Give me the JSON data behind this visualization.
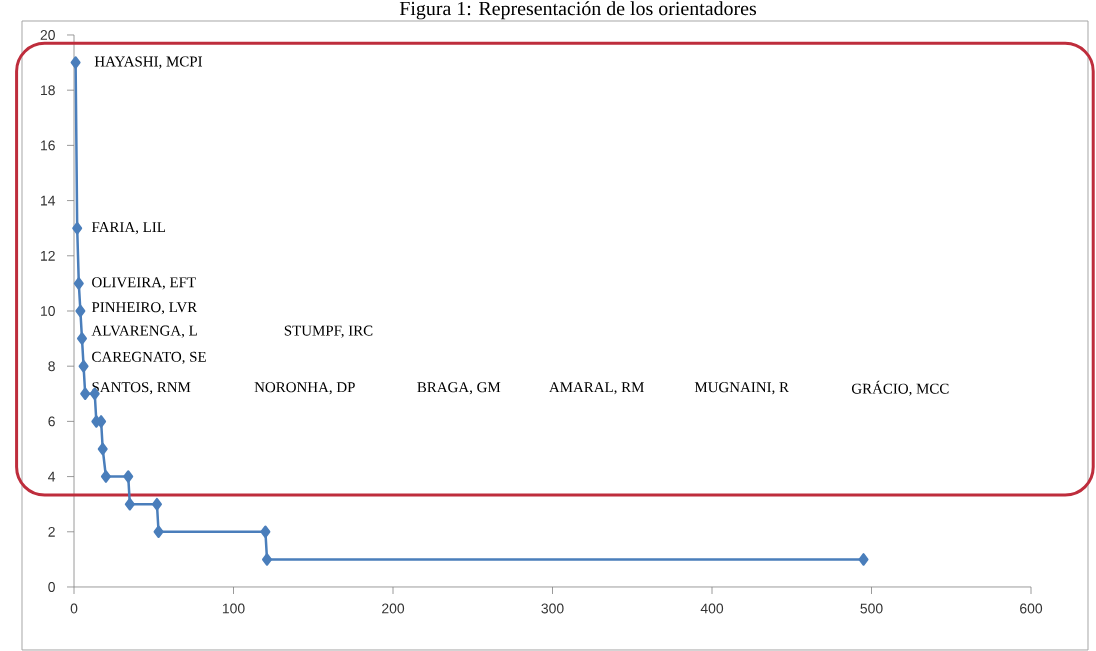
{
  "chart_data": {
    "type": "line",
    "title": "Figura 1: Representación de los orientadores",
    "x": [
      1,
      2,
      3,
      4,
      5,
      6,
      7,
      13,
      14,
      17,
      18,
      20,
      34,
      35,
      52,
      53,
      120,
      121,
      495
    ],
    "series": [
      {
        "color": "#4a7ebb",
        "values": [
          19,
          13,
          11,
          10,
          9,
          8,
          7,
          7,
          6,
          6,
          5,
          4,
          4,
          3,
          3,
          2,
          2,
          1,
          1
        ]
      }
    ],
    "xlim": [
      0,
      600
    ],
    "ylim": [
      0,
      20
    ],
    "xticks": [
      0,
      100,
      200,
      300,
      400,
      500,
      600
    ],
    "yticks": [
      0,
      2,
      4,
      6,
      8,
      10,
      12,
      14,
      16,
      18,
      20
    ],
    "marker": "diamond",
    "line_style": "solid",
    "annotations": [
      "HAYASHI, MCPI",
      "FARIA, LIL",
      "OLIVEIRA, EFT",
      "PINHEIRO, LVR",
      "ALVARENGA, L",
      "STUMPF, IRC",
      "CAREGNATO, SE",
      "SANTOS, RNM",
      "NORONHA, DP",
      "BRAGA, GM",
      "AMARAL, RM",
      "MUGNAINI, R",
      "GRÁCIO, MCC"
    ]
  }
}
